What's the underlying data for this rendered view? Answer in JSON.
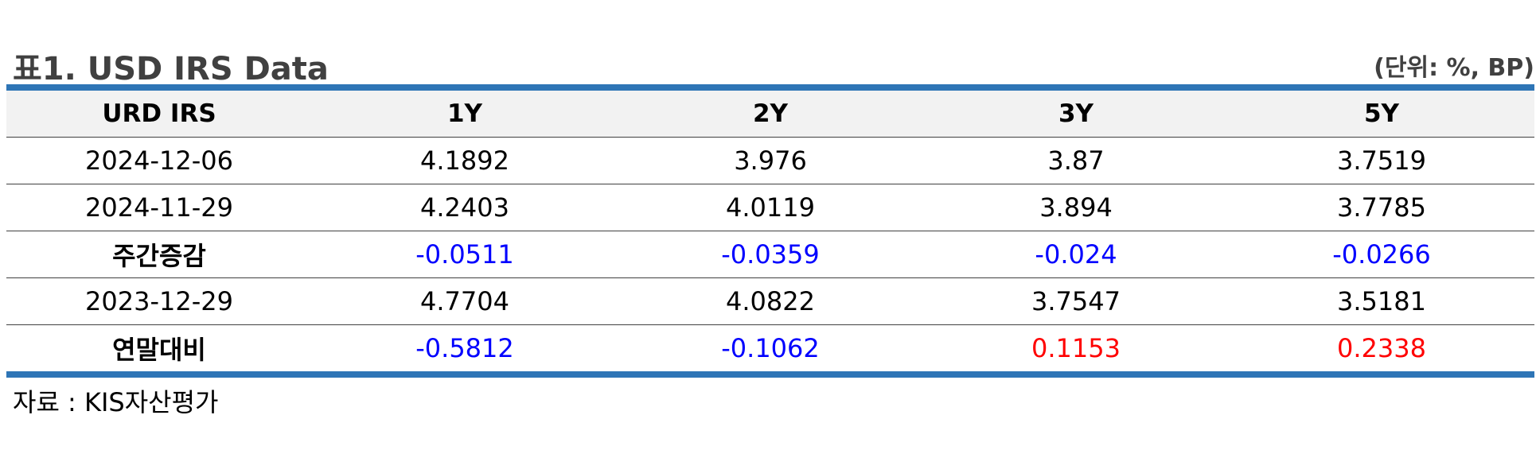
{
  "title": "표1. USD IRS Data",
  "unit_note": "(단위: %, BP)",
  "columns": [
    "URD IRS",
    "1Y",
    "2Y",
    "3Y",
    "5Y"
  ],
  "rows": [
    [
      "2024-12-06",
      "4.1892",
      "3.976",
      "3.87",
      "3.7519"
    ],
    [
      "2024-11-29",
      "4.2403",
      "4.0119",
      "3.894",
      "3.7785"
    ],
    [
      "주간증감",
      "-0.0511",
      "-0.0359",
      "-0.024",
      "-0.0266"
    ],
    [
      "2023-12-29",
      "4.7704",
      "4.0822",
      "3.7547",
      "3.5181"
    ],
    [
      "연말대비",
      "-0.5812",
      "-0.1062",
      "0.1153",
      "0.2338"
    ]
  ],
  "source": "자료 : KIS자산평가",
  "colors": {
    "rule": "#2e75b6",
    "header_bg": "#f2f2f2",
    "negative": "#0000ff",
    "positive": "#ff0000"
  }
}
